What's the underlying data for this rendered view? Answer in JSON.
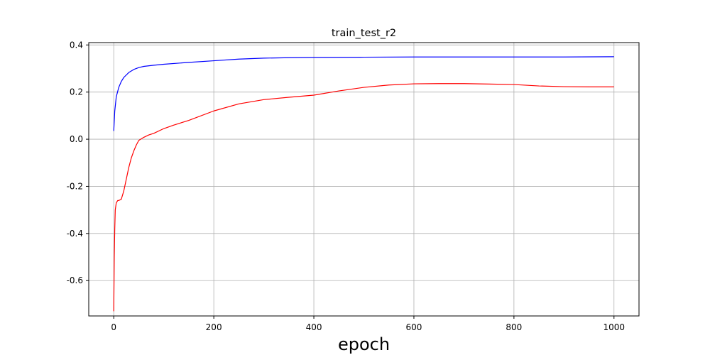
{
  "chart_data": {
    "type": "line",
    "title": "train_test_r2",
    "xlabel": "epoch",
    "ylabel": "",
    "xlim": [
      -50,
      1050
    ],
    "ylim": [
      -0.75,
      0.41
    ],
    "xticks": [
      0,
      200,
      400,
      600,
      800,
      1000
    ],
    "xtick_labels": [
      "0",
      "200",
      "400",
      "600",
      "800",
      "1000"
    ],
    "yticks": [
      -0.6,
      -0.4,
      -0.2,
      0.0,
      0.2,
      0.4
    ],
    "ytick_labels": [
      "-0.6",
      "-0.4",
      "-0.2",
      "0.0",
      "0.2",
      "0.4"
    ],
    "grid": true,
    "series": [
      {
        "color": "#0000ff",
        "x": [
          0,
          2,
          5,
          10,
          15,
          20,
          30,
          40,
          50,
          60,
          80,
          100,
          150,
          200,
          250,
          300,
          350,
          400,
          500,
          600,
          700,
          800,
          900,
          1000
        ],
        "y": [
          0.035,
          0.12,
          0.18,
          0.22,
          0.245,
          0.262,
          0.283,
          0.296,
          0.304,
          0.309,
          0.314,
          0.318,
          0.326,
          0.333,
          0.34,
          0.344,
          0.346,
          0.347,
          0.348,
          0.349,
          0.349,
          0.349,
          0.349,
          0.35
        ]
      },
      {
        "color": "#ff0000",
        "x": [
          0,
          1,
          2,
          3,
          5,
          8,
          10,
          15,
          20,
          25,
          30,
          35,
          40,
          45,
          50,
          60,
          70,
          80,
          100,
          120,
          150,
          200,
          250,
          300,
          350,
          400,
          450,
          500,
          550,
          600,
          650,
          700,
          750,
          800,
          850,
          900,
          950,
          1000
        ],
        "y": [
          -0.73,
          -0.5,
          -0.38,
          -0.3,
          -0.27,
          -0.26,
          -0.26,
          -0.255,
          -0.22,
          -0.17,
          -0.12,
          -0.08,
          -0.05,
          -0.025,
          -0.005,
          0.008,
          0.018,
          0.025,
          0.045,
          0.06,
          0.08,
          0.12,
          0.15,
          0.168,
          0.178,
          0.187,
          0.205,
          0.22,
          0.23,
          0.235,
          0.236,
          0.236,
          0.234,
          0.232,
          0.226,
          0.223,
          0.222,
          0.222
        ]
      }
    ]
  }
}
